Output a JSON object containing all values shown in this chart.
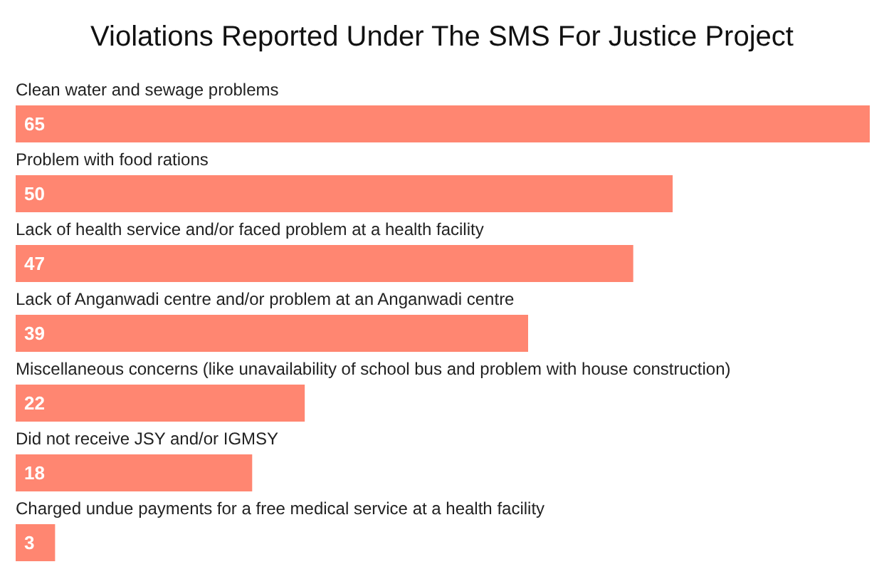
{
  "chart_data": {
    "type": "bar",
    "orientation": "horizontal",
    "title": "Violations Reported Under The SMS For Justice Project",
    "categories": [
      "Clean water and sewage problems",
      "Problem with food rations",
      "Lack of health service and/or faced problem at a health facility",
      "Lack of Anganwadi centre and/or problem at an Anganwadi centre",
      "Miscellaneous concerns (like unavailability of school bus and problem with house construction)",
      "Did not receive JSY and/or IGMSY",
      "Charged undue payments for a free medical service at a health facility"
    ],
    "values": [
      65,
      50,
      47,
      39,
      22,
      18,
      3
    ],
    "color": "#ff8671",
    "data_labels": true
  }
}
